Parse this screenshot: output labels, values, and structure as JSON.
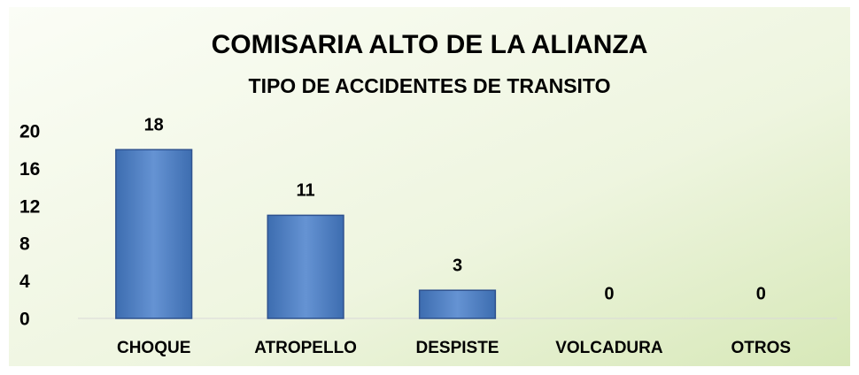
{
  "chart_data": {
    "type": "bar",
    "title": "COMISARIA ALTO DE LA ALIANZA",
    "subtitle": "TIPO DE ACCIDENTES DE TRANSITO",
    "categories": [
      "CHOQUE",
      "ATROPELLO",
      "DESPISTE",
      "VOLCADURA",
      "OTROS"
    ],
    "values": [
      18,
      11,
      3,
      0,
      0
    ],
    "color": "#4f81bd",
    "ylim": [
      0,
      20
    ],
    "yticks": [
      0,
      4,
      8,
      12,
      16,
      20
    ],
    "grid": false
  }
}
